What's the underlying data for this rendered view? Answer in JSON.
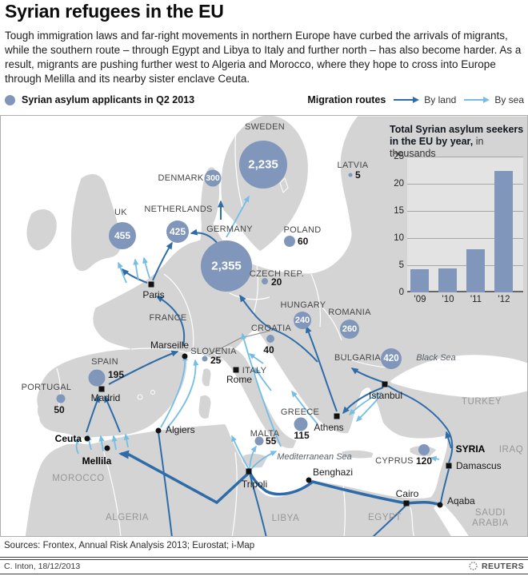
{
  "header": {
    "title": "Syrian refugees in the EU",
    "intro": "Tough immigration laws and far-right movements in northern Europe have curbed the arrivals of migrants, while the southern route – through Egypt and Libya to Italy and further north – has also become harder. As a result, migrants are pushing further west to Algeria and Morocco, where they hope to cross into Europe through Melilla and its nearby sister enclave Ceuta.",
    "intro_note": "Melilla"
  },
  "legend": {
    "bubble_label": "Syrian asylum applicants in Q2 2013",
    "routes_label": "Migration routes",
    "by_land": "By land",
    "by_sea": "By sea"
  },
  "colors": {
    "bubble": "#8096ba",
    "land_route": "#2d6ca8",
    "sea_route": "#74bde6",
    "land": "#d4d4d4",
    "sea": "#ffffff"
  },
  "map": {
    "countries": [
      {
        "name": "SWEDEN",
        "value": "2,235"
      },
      {
        "name": "DENMARK",
        "value": "300"
      },
      {
        "name": "UK",
        "value": "455"
      },
      {
        "name": "NETHERLANDS",
        "value": "425"
      },
      {
        "name": "GERMANY",
        "value": "2,355"
      },
      {
        "name": "POLAND",
        "value": "60"
      },
      {
        "name": "LATVIA",
        "value": "5"
      },
      {
        "name": "CZECH REP.",
        "value": "20"
      },
      {
        "name": "HUNGARY",
        "value": "240"
      },
      {
        "name": "ROMANIA",
        "value": "260"
      },
      {
        "name": "CROATIA",
        "value": "40"
      },
      {
        "name": "SLOVENIA",
        "value": "25"
      },
      {
        "name": "SPAIN",
        "value": "195"
      },
      {
        "name": "PORTUGAL",
        "value": "50"
      },
      {
        "name": "GREECE",
        "value": "115"
      },
      {
        "name": "MALTA",
        "value": "55"
      },
      {
        "name": "BULGARIA",
        "value": "420"
      },
      {
        "name": "CYPRUS",
        "value": "120"
      }
    ],
    "cities": [
      {
        "name": "Paris"
      },
      {
        "name": "Madrid"
      },
      {
        "name": "Marseille"
      },
      {
        "name": "Rome"
      },
      {
        "name": "Ceuta"
      },
      {
        "name": "Mellila"
      },
      {
        "name": "Algiers"
      },
      {
        "name": "Tripoli"
      },
      {
        "name": "Benghazi"
      },
      {
        "name": "Athens"
      },
      {
        "name": "Istanbul"
      },
      {
        "name": "Damascus"
      },
      {
        "name": "Cairo"
      },
      {
        "name": "Aqaba"
      }
    ],
    "areas": [
      "FRANCE",
      "ITALY",
      "SYRIA"
    ],
    "regions": [
      "MOROCCO",
      "ALGERIA",
      "LIBYA",
      "EGYPT",
      "TURKEY",
      "IRAQ",
      "SAUDI ARABIA"
    ],
    "seas": [
      "Black Sea",
      "Mediterranean Sea"
    ]
  },
  "chart_data": {
    "type": "bar",
    "title_bold": "Total Syrian asylum seekers in the EU by year,",
    "title_light": " in thousands",
    "categories": [
      "'09",
      "'10",
      "'11",
      "'12"
    ],
    "values": [
      4.3,
      4.4,
      8,
      22.3
    ],
    "ylim": [
      0,
      25
    ],
    "yticks": [
      0,
      5,
      10,
      15,
      20,
      25
    ],
    "grid": true,
    "legend_position": "none",
    "bar_color": "#8096ba"
  },
  "footer": {
    "sources": "Sources: Frontex, Annual Risk Analysis 2013; Eurostat; i-Map",
    "credit": "C. Inton, 18/12/2013",
    "logo": "REUTERS"
  }
}
